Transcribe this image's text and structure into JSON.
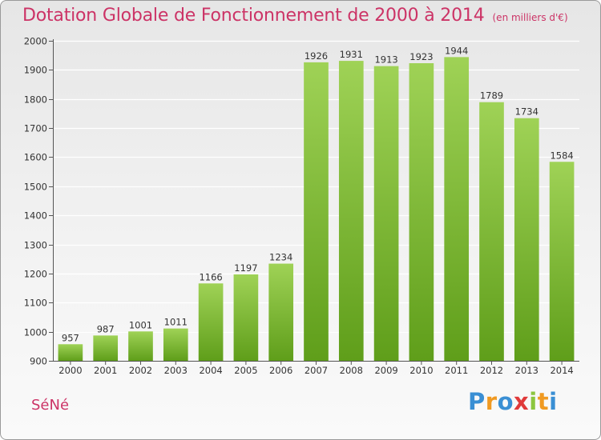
{
  "title": "Dotation Globale de Fonctionnement de 2000 à 2014",
  "unit_note": "(en milliers d'€)",
  "commune": "SéNé",
  "logo": {
    "letters": [
      "P",
      "r",
      "o",
      "x",
      "i",
      "t",
      "i"
    ]
  },
  "colors": {
    "bar_light": "#9fd256",
    "bar_dark": "#5f9e1a",
    "title": "#cc3366",
    "grid": "#ffffff"
  },
  "chart_data": {
    "type": "bar",
    "title": "Dotation Globale de Fonctionnement de 2000 à 2014",
    "ylabel": "",
    "xlabel": "",
    "categories": [
      "2000",
      "2001",
      "2002",
      "2003",
      "2004",
      "2005",
      "2006",
      "2007",
      "2008",
      "2009",
      "2010",
      "2011",
      "2012",
      "2013",
      "2014"
    ],
    "values": [
      957,
      987,
      1001,
      1011,
      1166,
      1197,
      1234,
      1926,
      1931,
      1913,
      1923,
      1944,
      1789,
      1734,
      1584
    ],
    "ylim": [
      900,
      2000
    ],
    "yticks": [
      900,
      1000,
      1100,
      1200,
      1300,
      1400,
      1500,
      1600,
      1700,
      1800,
      1900,
      2000
    ],
    "grid": true,
    "legend": "none"
  }
}
